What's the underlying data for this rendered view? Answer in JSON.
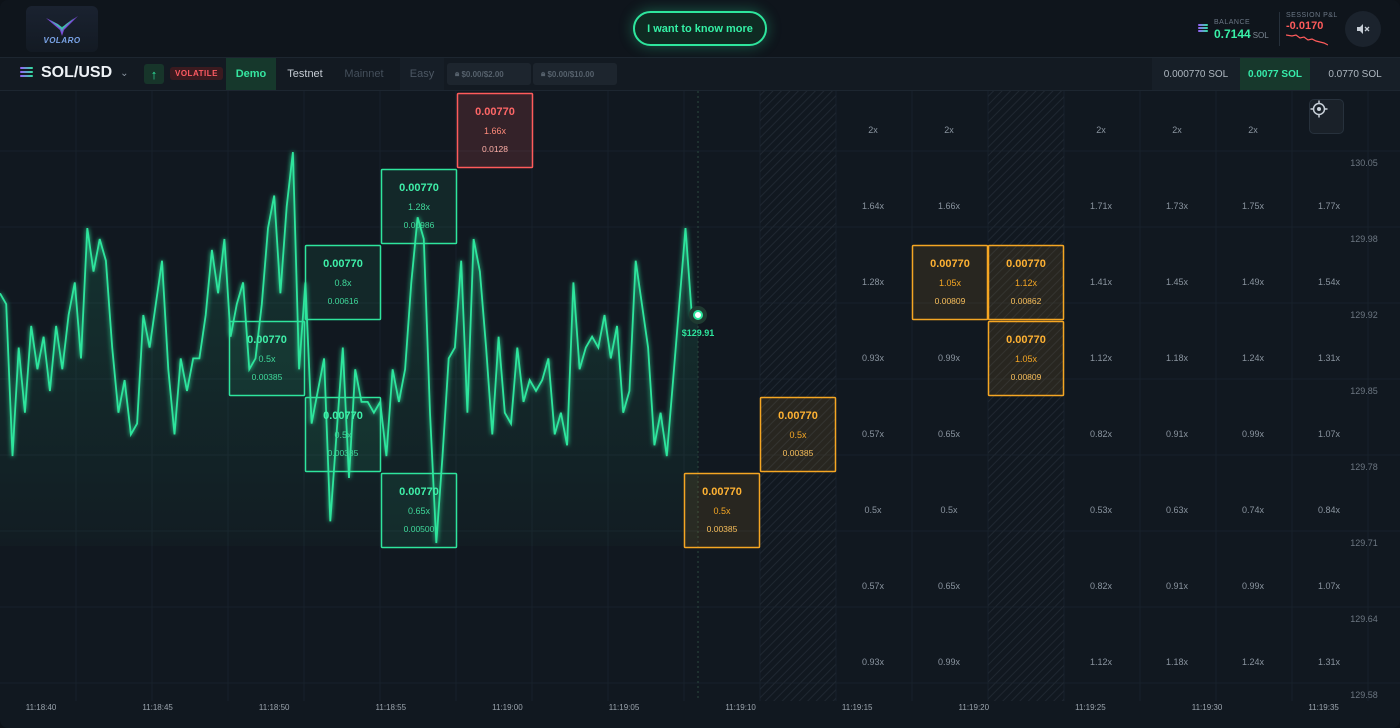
{
  "header": {
    "logo_text": "VOLARO",
    "cta_label": "I want to know more",
    "balance_label": "BALANCE",
    "balance_value": "0.7144",
    "balance_unit": "SOL",
    "pnl_label": "SESSION P&L",
    "pnl_value": "-0.0170",
    "mute_icon": "speaker-mute-icon"
  },
  "toolbar": {
    "pair": "SOL/USD",
    "volatility_badge": "VOLATILE",
    "tabs": [
      "Demo",
      "Testnet",
      "Mainnet"
    ],
    "active_tab": "Demo",
    "mode": "Easy",
    "limit_1": "$0.00/$2.00",
    "limit_2": "$0.00/$10.00",
    "bet_sizes": [
      "0.000770 SOL",
      "0.0077 SOL",
      "0.0770 SOL"
    ],
    "active_bet_size": "0.0077 SOL"
  },
  "colors": {
    "accent_green": "#2ee59d",
    "loss_red": "#ff5b5b",
    "pending_orange": "#f5a623"
  },
  "chart_data": {
    "type": "line",
    "current_price_label": "$129.91",
    "y_ticks": [
      "130.05",
      "129.98",
      "129.92",
      "129.85",
      "129.78",
      "129.71",
      "129.64",
      "129.58"
    ],
    "x_ticks": [
      "11:18:40",
      "11:18:45",
      "11:18:50",
      "11:18:55",
      "11:19:00",
      "11:19:05",
      "11:19:10",
      "11:19:15",
      "11:19:20",
      "11:19:25",
      "11:19:30",
      "11:19:35"
    ],
    "price_series": [
      129.93,
      129.92,
      129.78,
      129.88,
      129.82,
      129.9,
      129.86,
      129.89,
      129.84,
      129.9,
      129.86,
      129.91,
      129.94,
      129.87,
      129.99,
      129.95,
      129.98,
      129.96,
      129.88,
      129.82,
      129.85,
      129.8,
      129.81,
      129.91,
      129.88,
      129.92,
      129.96,
      129.86,
      129.8,
      129.87,
      129.84,
      129.87,
      129.87,
      129.91,
      129.97,
      129.93,
      129.98,
      129.89,
      129.92,
      129.94,
      129.86,
      129.87,
      129.92,
      129.99,
      130.02,
      129.93,
      130.01,
      130.06,
      129.86,
      129.94,
      129.81,
      129.84,
      129.87,
      129.72,
      129.8,
      129.88,
      129.76,
      129.86,
      129.83,
      129.83,
      129.82,
      129.83,
      129.78,
      129.86,
      129.83,
      129.86,
      129.94,
      130.0,
      129.98,
      129.82,
      129.7,
      129.78,
      129.87,
      129.88,
      129.96,
      129.82,
      129.98,
      129.95,
      129.88,
      129.8,
      129.89,
      129.82,
      129.81,
      129.88,
      129.83,
      129.85,
      129.84,
      129.85,
      129.87,
      129.8,
      129.82,
      129.79,
      129.94,
      129.86,
      129.88,
      129.89,
      129.88,
      129.91,
      129.87,
      129.9,
      129.82,
      129.84,
      129.96,
      129.92,
      129.88,
      129.79,
      129.82,
      129.78,
      129.85,
      129.92,
      129.99,
      129.91,
      129.91
    ],
    "multiplier_columns": [
      [
        "2x",
        "1.64x",
        "1.28x",
        "0.93x",
        "0.57x",
        "0.5x",
        "0.57x",
        "0.93x"
      ],
      [
        "2x",
        "1.66x",
        "",
        "0.99x",
        "0.65x",
        "0.5x",
        "0.65x",
        "0.99x"
      ],
      [
        "",
        "",
        "",
        "",
        "",
        "",
        "",
        ""
      ],
      [
        "2x",
        "1.71x",
        "1.41x",
        "1.12x",
        "0.82x",
        "0.53x",
        "0.82x",
        "1.12x"
      ],
      [
        "2x",
        "1.73x",
        "1.45x",
        "1.18x",
        "0.91x",
        "0.63x",
        "0.91x",
        "1.18x"
      ],
      [
        "2x",
        "1.75x",
        "1.49x",
        "1.24x",
        "0.99x",
        "0.74x",
        "0.99x",
        "1.24x"
      ],
      [
        "",
        "1.77x",
        "1.54x",
        "1.31x",
        "1.07x",
        "0.84x",
        "1.07x",
        "1.31x"
      ]
    ],
    "bets": [
      {
        "amount": "0.00770",
        "mult": "0.5x",
        "payout": "0.00385",
        "status": "won"
      },
      {
        "amount": "0.00770",
        "mult": "0.8x",
        "payout": "0.00616",
        "status": "won"
      },
      {
        "amount": "0.00770",
        "mult": "0.5x",
        "payout": "0.00385",
        "status": "won"
      },
      {
        "amount": "0.00770",
        "mult": "1.28x",
        "payout": "0.00986",
        "status": "won"
      },
      {
        "amount": "0.00770",
        "mult": "0.65x",
        "payout": "0.00500",
        "status": "won"
      },
      {
        "amount": "0.00770",
        "mult": "1.66x",
        "payout": "0.0128",
        "status": "lost"
      },
      {
        "amount": "0.00770",
        "mult": "0.5x",
        "payout": "0.00385",
        "status": "pending"
      },
      {
        "amount": "0.00770",
        "mult": "0.5x",
        "payout": "0.00385",
        "status": "pending"
      },
      {
        "amount": "0.00770",
        "mult": "1.05x",
        "payout": "0.00809",
        "status": "pending"
      },
      {
        "amount": "0.00770",
        "mult": "1.12x",
        "payout": "0.00862",
        "status": "pending"
      },
      {
        "amount": "0.00770",
        "mult": "1.05x",
        "payout": "0.00809",
        "status": "pending"
      }
    ]
  }
}
